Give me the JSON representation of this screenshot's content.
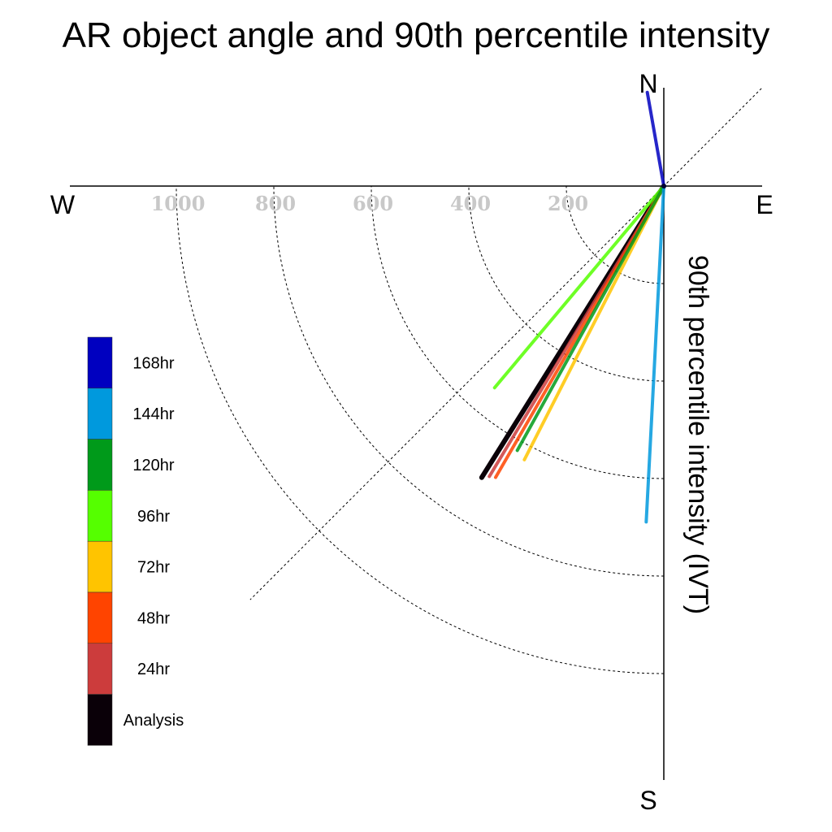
{
  "chart_data": {
    "type": "polar-vector",
    "title": "AR object angle and 90th percentile intensity",
    "radial_label": "90th percentile intensity (IVT)",
    "compass": {
      "north": "N",
      "south": "S",
      "east": "E",
      "west": "W"
    },
    "radial_ticks": [
      200,
      400,
      600,
      800,
      1000
    ],
    "radial_tick_labels": [
      "200",
      "400",
      "600",
      "800",
      "1000"
    ],
    "rmax": 1200,
    "grid": true,
    "diagonal_reference_angle_deg": 45,
    "legend_position": "left",
    "series": [
      {
        "name": "168hr",
        "color": "#0000c0",
        "angle_deg": 350,
        "intensity": 195
      },
      {
        "name": "144hr",
        "color": "#0099dd",
        "angle_deg": 183,
        "intensity": 690
      },
      {
        "name": "120hr",
        "color": "#009a1a",
        "angle_deg": 209,
        "intensity": 620
      },
      {
        "name": "96hr",
        "color": "#55ff00",
        "angle_deg": 220,
        "intensity": 540
      },
      {
        "name": "72hr",
        "color": "#ffc400",
        "angle_deg": 207,
        "intensity": 630
      },
      {
        "name": "48hr",
        "color": "#ff4400",
        "angle_deg": 210,
        "intensity": 690
      },
      {
        "name": "24hr",
        "color": "#cc3c3c",
        "angle_deg": 211,
        "intensity": 695
      },
      {
        "name": "Analysis",
        "color": "#0a0008",
        "angle_deg": 212,
        "intensity": 705
      }
    ]
  }
}
